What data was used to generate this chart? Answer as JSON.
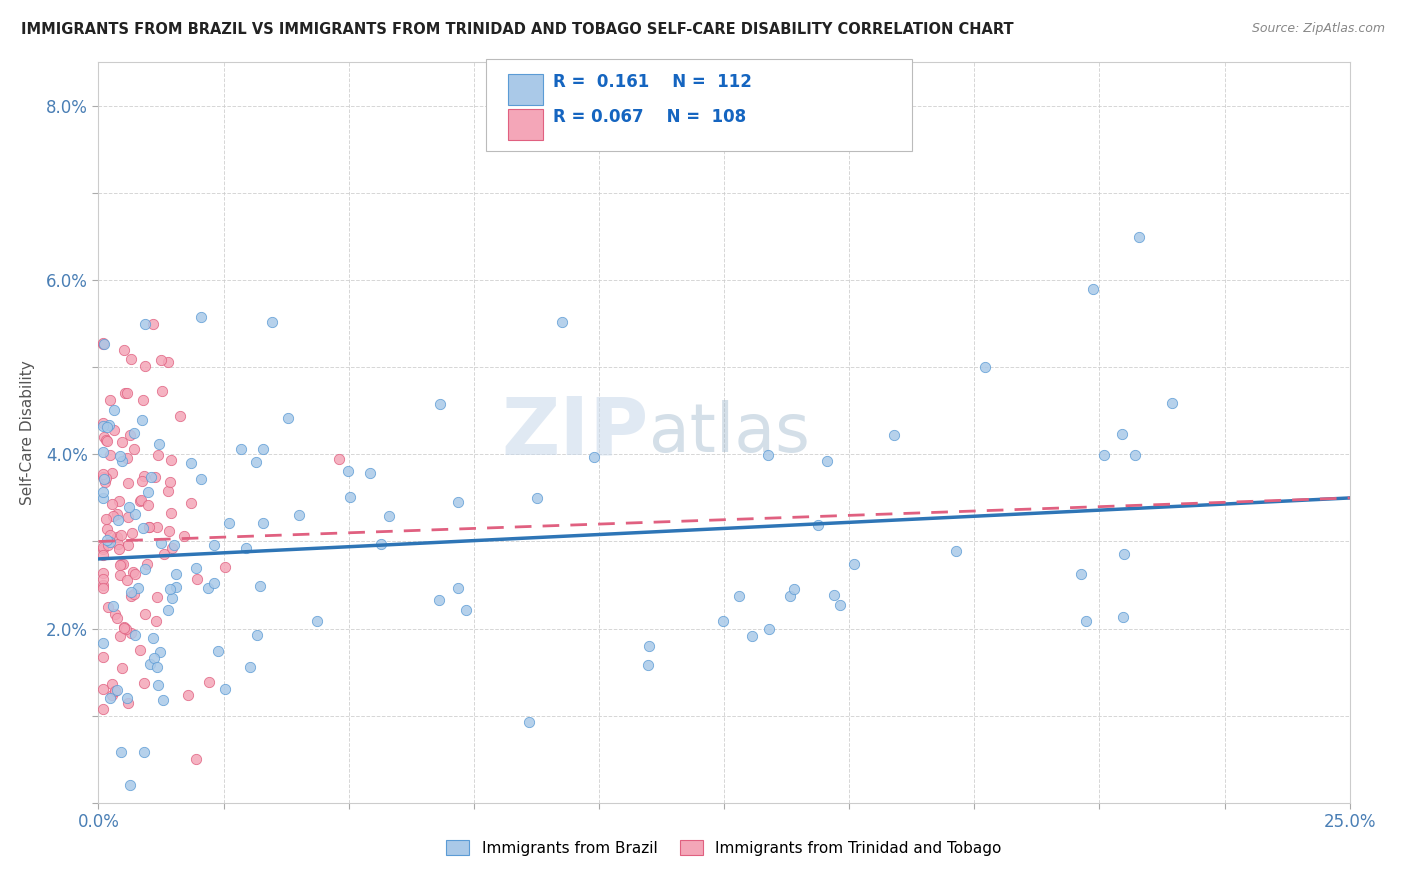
{
  "title": "IMMIGRANTS FROM BRAZIL VS IMMIGRANTS FROM TRINIDAD AND TOBAGO SELF-CARE DISABILITY CORRELATION CHART",
  "source": "Source: ZipAtlas.com",
  "ylabel": "Self-Care Disability",
  "xlim": [
    0.0,
    0.25
  ],
  "ylim": [
    0.0,
    0.085
  ],
  "xtick_positions": [
    0.0,
    0.025,
    0.05,
    0.075,
    0.1,
    0.125,
    0.15,
    0.175,
    0.2,
    0.225,
    0.25
  ],
  "xtick_labels": [
    "0.0%",
    "",
    "",
    "",
    "",
    "",
    "",
    "",
    "",
    "",
    "25.0%"
  ],
  "ytick_positions": [
    0.0,
    0.01,
    0.02,
    0.03,
    0.04,
    0.05,
    0.06,
    0.07,
    0.08
  ],
  "ytick_labels": [
    "",
    "",
    "2.0%",
    "",
    "4.0%",
    "",
    "6.0%",
    "",
    "8.0%"
  ],
  "brazil_color": "#aac9e8",
  "brazil_edge_color": "#5b9bd5",
  "brazil_line_color": "#2e75b6",
  "trinidad_color": "#f4a6b8",
  "trinidad_edge_color": "#e06080",
  "trinidad_line_color": "#e06080",
  "brazil_R": 0.161,
  "brazil_N": 112,
  "trinidad_R": 0.067,
  "trinidad_N": 108,
  "legend_label_brazil": "Immigrants from Brazil",
  "legend_label_trinidad": "Immigrants from Trinidad and Tobago",
  "brazil_line_x0": 0.0,
  "brazil_line_x1": 0.25,
  "brazil_line_y0": 0.028,
  "brazil_line_y1": 0.035,
  "trinidad_line_x0": 0.0,
  "trinidad_line_x1": 0.25,
  "trinidad_line_y0": 0.03,
  "trinidad_line_y1": 0.035,
  "watermark_zip": "ZIP",
  "watermark_atlas": "atlas"
}
